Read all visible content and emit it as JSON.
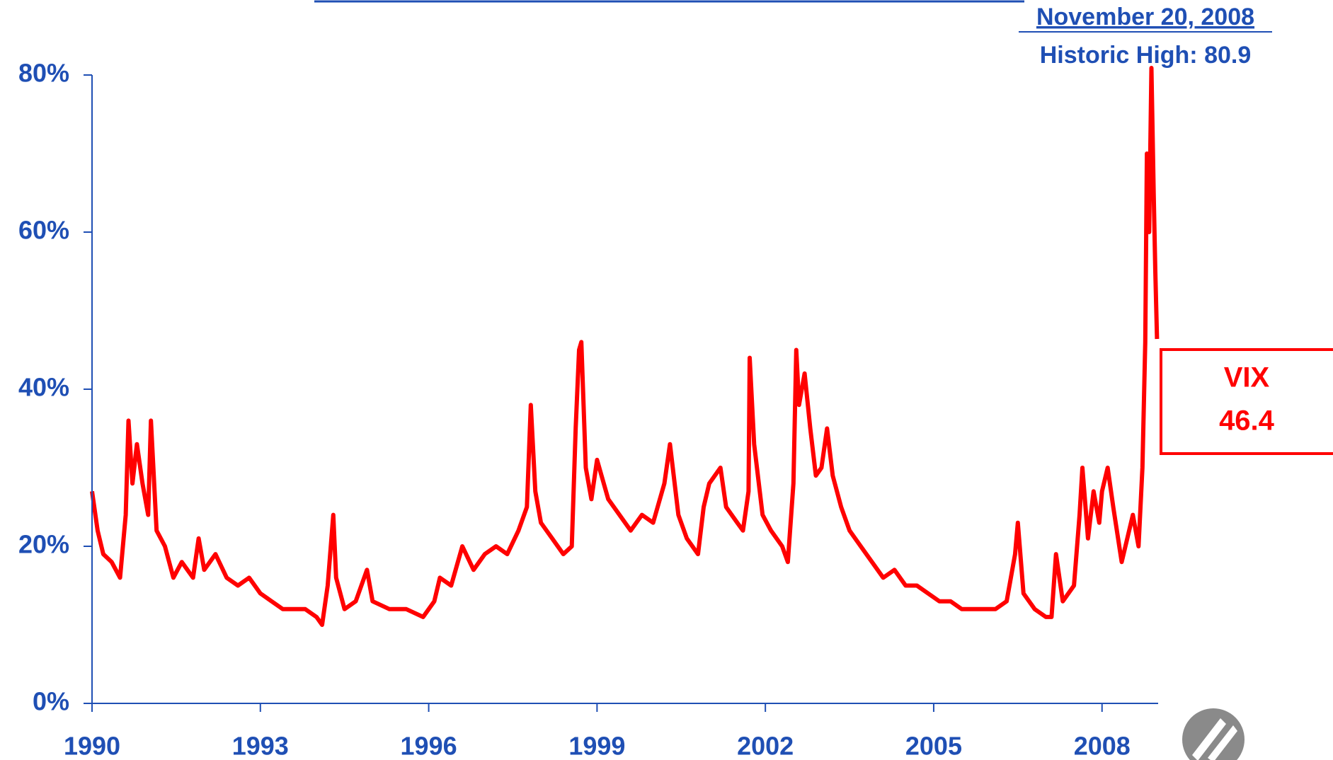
{
  "chart_data": {
    "type": "line",
    "xlim": [
      1990,
      2009
    ],
    "xticks": [
      1990,
      1993,
      1996,
      1999,
      2002,
      2005,
      2008
    ],
    "ylim": [
      0,
      80
    ],
    "yticks": [
      {
        "value": 0,
        "label": "0%"
      },
      {
        "value": 20,
        "label": "20%"
      },
      {
        "value": 40,
        "label": "40%"
      },
      {
        "value": 60,
        "label": "60%"
      },
      {
        "value": 80,
        "label": "80%"
      }
    ],
    "annotations": {
      "date": "November 20, 2008",
      "high": "Historic High: 80.9",
      "box_name": "VIX",
      "box_value": "46.4"
    },
    "grid": false,
    "series": [
      {
        "color": "#ff0000",
        "x": [
          1990.0,
          1990.1,
          1990.2,
          1990.35,
          1990.5,
          1990.6,
          1990.65,
          1990.72,
          1990.8,
          1990.9,
          1991.0,
          1991.05,
          1991.15,
          1991.3,
          1991.45,
          1991.6,
          1991.8,
          1991.9,
          1992.0,
          1992.2,
          1992.4,
          1992.6,
          1992.8,
          1993.0,
          1993.2,
          1993.4,
          1993.6,
          1993.8,
          1994.0,
          1994.1,
          1994.2,
          1994.3,
          1994.35,
          1994.5,
          1994.7,
          1994.9,
          1995.0,
          1995.3,
          1995.6,
          1995.9,
          1996.1,
          1996.2,
          1996.4,
          1996.6,
          1996.8,
          1997.0,
          1997.2,
          1997.4,
          1997.6,
          1997.75,
          1997.82,
          1997.9,
          1998.0,
          1998.2,
          1998.4,
          1998.55,
          1998.62,
          1998.68,
          1998.72,
          1998.8,
          1998.9,
          1999.0,
          1999.2,
          1999.4,
          1999.6,
          1999.8,
          2000.0,
          2000.2,
          2000.3,
          2000.45,
          2000.6,
          2000.8,
          2000.9,
          2001.0,
          2001.2,
          2001.3,
          2001.5,
          2001.6,
          2001.7,
          2001.72,
          2001.8,
          2001.95,
          2002.1,
          2002.3,
          2002.4,
          2002.5,
          2002.55,
          2002.6,
          2002.7,
          2002.8,
          2002.9,
          2003.0,
          2003.1,
          2003.2,
          2003.35,
          2003.5,
          2003.7,
          2003.9,
          2004.1,
          2004.3,
          2004.5,
          2004.7,
          2004.9,
          2005.1,
          2005.3,
          2005.5,
          2005.7,
          2005.9,
          2006.1,
          2006.3,
          2006.45,
          2006.5,
          2006.6,
          2006.8,
          2007.0,
          2007.1,
          2007.18,
          2007.3,
          2007.5,
          2007.6,
          2007.65,
          2007.75,
          2007.85,
          2007.95,
          2008.0,
          2008.1,
          2008.2,
          2008.35,
          2008.45,
          2008.55,
          2008.65,
          2008.72,
          2008.77,
          2008.8,
          2008.84,
          2008.88,
          2008.92,
          2008.95,
          2008.98
        ],
        "values": [
          27,
          22,
          19,
          18,
          16,
          24,
          36,
          28,
          33,
          28,
          24,
          36,
          22,
          20,
          16,
          18,
          16,
          21,
          17,
          19,
          16,
          15,
          16,
          14,
          13,
          12,
          12,
          12,
          11,
          10,
          15,
          24,
          16,
          12,
          13,
          17,
          13,
          12,
          12,
          11,
          13,
          16,
          15,
          20,
          17,
          19,
          20,
          19,
          22,
          25,
          38,
          27,
          23,
          21,
          19,
          20,
          35,
          45,
          46,
          30,
          26,
          31,
          26,
          24,
          22,
          24,
          23,
          28,
          33,
          24,
          21,
          19,
          25,
          28,
          30,
          25,
          23,
          22,
          27,
          44,
          33,
          24,
          22,
          20,
          18,
          28,
          45,
          38,
          42,
          35,
          29,
          30,
          35,
          29,
          25,
          22,
          20,
          18,
          16,
          17,
          15,
          15,
          14,
          13,
          13,
          12,
          12,
          12,
          12,
          13,
          19,
          23,
          14,
          12,
          11,
          11,
          19,
          13,
          15,
          24,
          30,
          21,
          27,
          23,
          27,
          30,
          25,
          18,
          21,
          24,
          20,
          30,
          46,
          70,
          60,
          80.9,
          65,
          55,
          46.4
        ]
      }
    ]
  }
}
